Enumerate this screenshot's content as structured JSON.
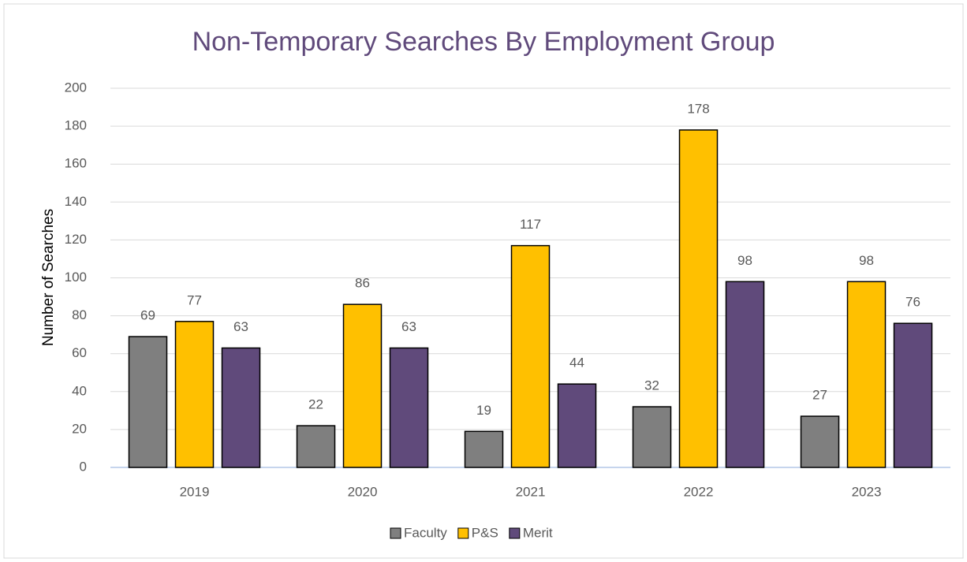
{
  "chart_data": {
    "type": "bar",
    "title": "Non-Temporary Searches By Employment Group",
    "y_label": "Number of Searches",
    "categories": [
      "2019",
      "2020",
      "2021",
      "2022",
      "2023"
    ],
    "series": [
      {
        "name": "Faculty",
        "color": "#7f7f7f",
        "values": [
          69,
          22,
          19,
          32,
          27
        ]
      },
      {
        "name": "P&S",
        "color": "#ffc000",
        "values": [
          77,
          86,
          117,
          178,
          98
        ]
      },
      {
        "name": "Merit",
        "color": "#604a7b",
        "values": [
          63,
          63,
          44,
          98,
          76
        ]
      }
    ],
    "ylim": [
      0,
      200
    ],
    "yticks": [
      0,
      20,
      40,
      60,
      80,
      100,
      120,
      140,
      160,
      180,
      200
    ],
    "grid": true,
    "legend": "bottom"
  }
}
